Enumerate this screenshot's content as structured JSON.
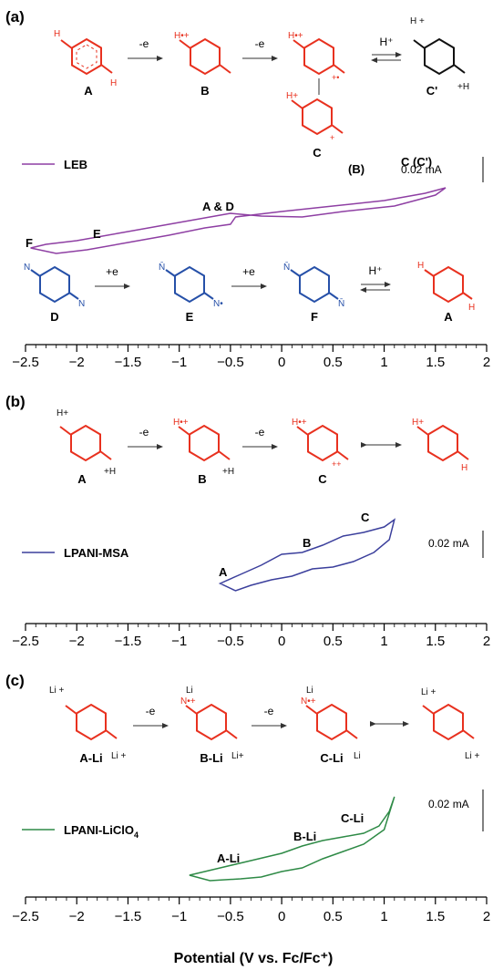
{
  "colors": {
    "amine_red": "#e8311f",
    "imine_blue": "#2650a8",
    "leb_purple": "#8e3fa3",
    "msa_navy": "#3b3f9c",
    "li_green": "#2e8a46",
    "axis": "#000000"
  },
  "panels": [
    {
      "id": "a",
      "label": "(a)",
      "legend": "LEB",
      "scale_bar": "0.02 mA",
      "top_scheme": [
        {
          "label": "A",
          "arrow_after": "-e"
        },
        {
          "label": "B",
          "arrow_after": "-e"
        },
        {
          "label": "C",
          "arrow_after": "H⁺"
        },
        {
          "label": "C'"
        }
      ],
      "bottom_scheme": [
        {
          "label": "D",
          "arrow_after": "+e"
        },
        {
          "label": "E",
          "arrow_after": "+e"
        },
        {
          "label": "F",
          "arrow_after": "H⁺"
        },
        {
          "label": "A"
        }
      ],
      "annotations": [
        "F",
        "E",
        "A & D",
        "(B)",
        "C (C')"
      ]
    },
    {
      "id": "b",
      "label": "(b)",
      "legend": "LPANI-MSA",
      "scale_bar": "0.02 mA",
      "top_scheme": [
        {
          "label": "A",
          "arrow_after": "-e"
        },
        {
          "label": "B",
          "arrow_after": "-e"
        },
        {
          "label": "C",
          "arrow_after": ""
        },
        {
          "label": ""
        }
      ],
      "annotations": [
        "A",
        "B",
        "C"
      ]
    },
    {
      "id": "c",
      "label": "(c)",
      "legend": "LPANI-LiClO",
      "legend_sub": "4",
      "scale_bar": "0.02 mA",
      "top_scheme": [
        {
          "label": "A-Li",
          "arrow_after": "-e"
        },
        {
          "label": "B-Li",
          "arrow_after": "-e"
        },
        {
          "label": "C-Li",
          "arrow_after": ""
        },
        {
          "label": ""
        }
      ],
      "annotations": [
        "A-Li",
        "B-Li",
        "C-Li"
      ]
    }
  ],
  "chart_data": [
    {
      "type": "line",
      "xlim": [
        -2.5,
        2
      ],
      "xticks": [
        "−2.5",
        "−2",
        "−1.5",
        "−1",
        "−0.5",
        "0",
        "0.5",
        "1",
        "1.5",
        "2"
      ],
      "xlabel": "",
      "series": [
        {
          "name": "LEB",
          "x": [
            -0.5,
            -0.8,
            -1.2,
            -1.6,
            -2.0,
            -2.3,
            -2.45,
            -2.2,
            -1.9,
            -1.5,
            -1.1,
            -0.75,
            -0.5,
            -0.45,
            0.0,
            0.5,
            1.0,
            1.4,
            1.6,
            1.5,
            1.1,
            0.6,
            0.2,
            -0.2,
            -0.5
          ],
          "y": [
            0.002,
            -0.004,
            -0.012,
            -0.02,
            -0.028,
            -0.032,
            -0.036,
            -0.042,
            -0.038,
            -0.03,
            -0.022,
            -0.014,
            -0.01,
            -0.002,
            0.004,
            0.01,
            0.016,
            0.024,
            0.03,
            0.022,
            0.01,
            0.004,
            -0.002,
            -0.001,
            0.002
          ]
        }
      ]
    },
    {
      "type": "line",
      "xlim": [
        -2.5,
        2
      ],
      "xticks": [
        "−2.5",
        "−2",
        "−1.5",
        "−1",
        "−0.5",
        "0",
        "0.5",
        "1",
        "1.5",
        "2"
      ],
      "xlabel": "",
      "series": [
        {
          "name": "LPANI-MSA",
          "x": [
            -0.6,
            -0.4,
            -0.2,
            0.0,
            0.2,
            0.4,
            0.6,
            0.8,
            1.0,
            1.1,
            1.05,
            0.9,
            0.7,
            0.5,
            0.3,
            0.1,
            -0.1,
            -0.3,
            -0.45,
            -0.6
          ],
          "y": [
            -0.028,
            -0.018,
            -0.008,
            0.004,
            0.006,
            0.014,
            0.024,
            0.028,
            0.034,
            0.042,
            0.02,
            0.006,
            -0.004,
            -0.01,
            -0.012,
            -0.02,
            -0.024,
            -0.03,
            -0.036,
            -0.028
          ]
        }
      ]
    },
    {
      "type": "line",
      "xlim": [
        -2.5,
        2
      ],
      "xticks": [
        "−2.5",
        "−2",
        "−1.5",
        "−1",
        "−0.5",
        "0",
        "0.5",
        "1",
        "1.5",
        "2"
      ],
      "xlabel": "Potential (V vs. Fc/Fc⁺)",
      "series": [
        {
          "name": "LPANI-LiClO4",
          "x": [
            -0.9,
            -0.6,
            -0.3,
            0.0,
            0.2,
            0.4,
            0.6,
            0.8,
            0.95,
            1.05,
            1.1,
            1.0,
            0.8,
            0.6,
            0.4,
            0.2,
            0.0,
            -0.2,
            -0.4,
            -0.7,
            -0.9
          ],
          "y": [
            -0.03,
            -0.022,
            -0.014,
            -0.006,
            0.002,
            0.008,
            0.012,
            0.016,
            0.024,
            0.04,
            0.056,
            0.02,
            0.004,
            -0.004,
            -0.012,
            -0.022,
            -0.026,
            -0.032,
            -0.034,
            -0.036,
            -0.03
          ]
        }
      ]
    }
  ]
}
